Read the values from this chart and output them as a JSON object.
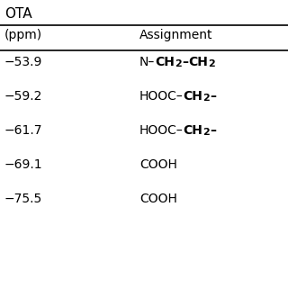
{
  "title": "OTA",
  "col1_header": "(ppm)",
  "col2_header": "Assignment",
  "ppm_values": [
    "−53.9",
    "−59.2",
    "−61.7",
    "−69.1",
    "−75.5"
  ],
  "assignments": [
    [
      {
        "text": "N–",
        "bold": false,
        "sub": false
      },
      {
        "text": "CH",
        "bold": true,
        "sub": false
      },
      {
        "text": "2",
        "bold": true,
        "sub": true
      },
      {
        "text": "–",
        "bold": true,
        "sub": false
      },
      {
        "text": "CH",
        "bold": true,
        "sub": false
      },
      {
        "text": "2",
        "bold": true,
        "sub": true
      }
    ],
    [
      {
        "text": "HOOC–",
        "bold": false,
        "sub": false
      },
      {
        "text": "CH",
        "bold": true,
        "sub": false
      },
      {
        "text": "2",
        "bold": true,
        "sub": true
      },
      {
        "text": "–",
        "bold": true,
        "sub": false
      }
    ],
    [
      {
        "text": "HOOC–",
        "bold": false,
        "sub": false
      },
      {
        "text": "CH",
        "bold": true,
        "sub": false
      },
      {
        "text": "2",
        "bold": true,
        "sub": true
      },
      {
        "text": "–",
        "bold": true,
        "sub": false
      }
    ],
    [
      {
        "text": "COOH",
        "bold": false,
        "sub": false
      }
    ],
    [
      {
        "text": "COOH",
        "bold": false,
        "sub": false
      }
    ]
  ],
  "bg_color": "#ffffff",
  "text_color": "#000000",
  "title_fontsize": 11,
  "header_fontsize": 10,
  "data_fontsize": 10
}
